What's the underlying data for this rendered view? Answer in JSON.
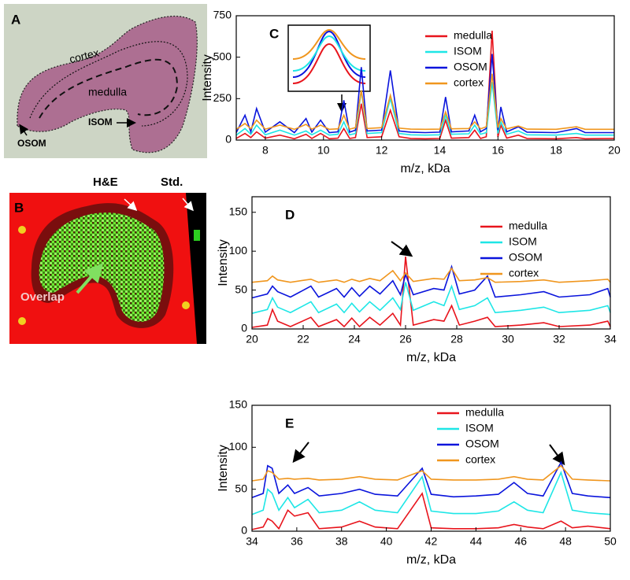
{
  "image_panels": {
    "A": {
      "label": "A",
      "regions": [
        "cortex",
        "medulla",
        "ISOM",
        "OSOM"
      ]
    },
    "B": {
      "label": "B",
      "annotations": [
        "H&E",
        "Std.",
        "Overlap"
      ]
    }
  },
  "chart_data": [
    {
      "type": "line",
      "panel_label": "C",
      "x_label": "m/z, kDa",
      "y_label": "Intensity",
      "legend": "upper right",
      "xlim": [
        7,
        20
      ],
      "xticks": [
        8,
        10,
        12,
        14,
        16,
        18,
        20
      ],
      "ylim": [
        0,
        750
      ],
      "yticks": [
        0,
        250,
        500,
        750
      ],
      "x": [
        7,
        7.3,
        7.5,
        7.7,
        8,
        8.5,
        9,
        9.4,
        9.6,
        9.9,
        10.2,
        10.5,
        10.7,
        10.9,
        11.1,
        11.3,
        11.5,
        12,
        12.3,
        12.6,
        13,
        13.5,
        14,
        14.2,
        14.4,
        15,
        15.2,
        15.4,
        15.6,
        15.8,
        16,
        16.1,
        16.3,
        16.7,
        17,
        18,
        18.7,
        19,
        20
      ],
      "series": [
        {
          "name": "medulla",
          "color": "#e8141c",
          "values": [
            10,
            40,
            15,
            50,
            12,
            30,
            8,
            35,
            10,
            40,
            8,
            12,
            70,
            10,
            15,
            220,
            15,
            20,
            180,
            20,
            10,
            8,
            10,
            120,
            12,
            15,
            60,
            10,
            20,
            660,
            20,
            90,
            12,
            30,
            10,
            8,
            15,
            8,
            10
          ]
        },
        {
          "name": "ISOM",
          "color": "#1ee6e6",
          "values": [
            30,
            70,
            35,
            90,
            32,
            60,
            30,
            55,
            32,
            60,
            30,
            35,
            110,
            32,
            40,
            300,
            40,
            45,
            250,
            40,
            32,
            30,
            32,
            150,
            35,
            38,
            90,
            35,
            45,
            350,
            40,
            110,
            35,
            55,
            32,
            30,
            40,
            30,
            30
          ]
        },
        {
          "name": "OSOM",
          "color": "#0a14dc",
          "values": [
            45,
            150,
            50,
            190,
            48,
            110,
            45,
            130,
            48,
            120,
            45,
            50,
            240,
            48,
            60,
            440,
            55,
            60,
            420,
            55,
            48,
            45,
            48,
            260,
            50,
            55,
            150,
            50,
            70,
            520,
            60,
            200,
            50,
            80,
            48,
            45,
            70,
            45,
            45
          ]
        },
        {
          "name": "cortex",
          "color": "#f0961e",
          "values": [
            65,
            100,
            68,
            120,
            66,
            90,
            65,
            95,
            66,
            90,
            65,
            68,
            150,
            66,
            75,
            300,
            70,
            75,
            270,
            72,
            66,
            65,
            66,
            170,
            68,
            70,
            110,
            68,
            80,
            400,
            75,
            130,
            68,
            85,
            66,
            65,
            80,
            65,
            65
          ]
        }
      ]
    },
    {
      "type": "line",
      "panel_label": "D",
      "x_label": "m/z, kDa",
      "y_label": "Intensity",
      "legend": "upper right",
      "xlim": [
        20,
        34
      ],
      "xticks": [
        20,
        22,
        24,
        26,
        28,
        30,
        32,
        34
      ],
      "ylim": [
        0,
        170
      ],
      "yticks": [
        0,
        50,
        100,
        150
      ],
      "x": [
        20,
        20.6,
        20.8,
        21.0,
        21.5,
        22.3,
        22.6,
        23.3,
        23.6,
        23.9,
        24.2,
        24.6,
        25.0,
        25.5,
        25.8,
        26.0,
        26.3,
        27.1,
        27.5,
        27.8,
        28.1,
        28.7,
        29.2,
        29.5,
        30.5,
        31.4,
        32,
        33.2,
        33.9,
        34
      ],
      "series": [
        {
          "name": "medulla",
          "color": "#e8141c",
          "values": [
            2,
            5,
            25,
            10,
            3,
            15,
            3,
            12,
            3,
            14,
            3,
            15,
            5,
            20,
            5,
            93,
            5,
            12,
            10,
            30,
            5,
            10,
            15,
            3,
            5,
            8,
            3,
            5,
            10,
            3
          ]
        },
        {
          "name": "ISOM",
          "color": "#1ee6e6",
          "values": [
            20,
            25,
            40,
            28,
            21,
            35,
            21,
            32,
            21,
            33,
            22,
            35,
            24,
            40,
            25,
            60,
            24,
            35,
            30,
            55,
            25,
            30,
            40,
            21,
            24,
            28,
            21,
            24,
            30,
            21
          ]
        },
        {
          "name": "OSOM",
          "color": "#0a14dc",
          "values": [
            40,
            45,
            55,
            48,
            41,
            55,
            41,
            52,
            41,
            53,
            42,
            55,
            45,
            62,
            44,
            70,
            44,
            52,
            50,
            80,
            45,
            50,
            68,
            41,
            44,
            48,
            41,
            44,
            52,
            41
          ]
        },
        {
          "name": "cortex",
          "color": "#f0961e",
          "values": [
            60,
            62,
            68,
            63,
            60,
            64,
            60,
            63,
            60,
            64,
            61,
            65,
            62,
            75,
            62,
            72,
            61,
            65,
            64,
            78,
            62,
            63,
            66,
            60,
            61,
            63,
            60,
            62,
            64,
            60
          ]
        }
      ]
    },
    {
      "type": "line",
      "panel_label": "E",
      "x_label": "m/z, kDa",
      "y_label": "Intensity",
      "legend": "upper right",
      "xlim": [
        34,
        50
      ],
      "xticks": [
        34,
        36,
        38,
        40,
        42,
        44,
        46,
        48,
        50
      ],
      "ylim": [
        0,
        150
      ],
      "yticks": [
        0,
        50,
        100,
        150
      ],
      "x": [
        34,
        34.5,
        34.7,
        34.9,
        35.2,
        35.6,
        35.9,
        36.5,
        37,
        38,
        38.8,
        39.5,
        40.5,
        41.6,
        42,
        43,
        44,
        45,
        45.7,
        46.3,
        47,
        47.8,
        48.3,
        49,
        50
      ],
      "series": [
        {
          "name": "medulla",
          "color": "#e8141c",
          "values": [
            2,
            5,
            15,
            12,
            3,
            25,
            18,
            22,
            3,
            5,
            12,
            5,
            3,
            45,
            4,
            3,
            3,
            4,
            8,
            5,
            3,
            12,
            4,
            6,
            3
          ]
        },
        {
          "name": "ISOM",
          "color": "#1ee6e6",
          "values": [
            20,
            25,
            50,
            45,
            25,
            40,
            28,
            38,
            22,
            25,
            35,
            25,
            22,
            65,
            24,
            21,
            21,
            24,
            35,
            25,
            22,
            70,
            25,
            22,
            20
          ]
        },
        {
          "name": "OSOM",
          "color": "#0a14dc",
          "values": [
            40,
            45,
            78,
            75,
            45,
            55,
            45,
            52,
            42,
            45,
            50,
            44,
            42,
            75,
            44,
            41,
            42,
            44,
            58,
            45,
            42,
            82,
            45,
            42,
            40
          ]
        },
        {
          "name": "cortex",
          "color": "#f0961e",
          "values": [
            60,
            62,
            72,
            70,
            62,
            63,
            62,
            63,
            61,
            62,
            65,
            62,
            61,
            72,
            62,
            61,
            61,
            62,
            65,
            62,
            61,
            78,
            62,
            61,
            60
          ]
        }
      ]
    }
  ]
}
